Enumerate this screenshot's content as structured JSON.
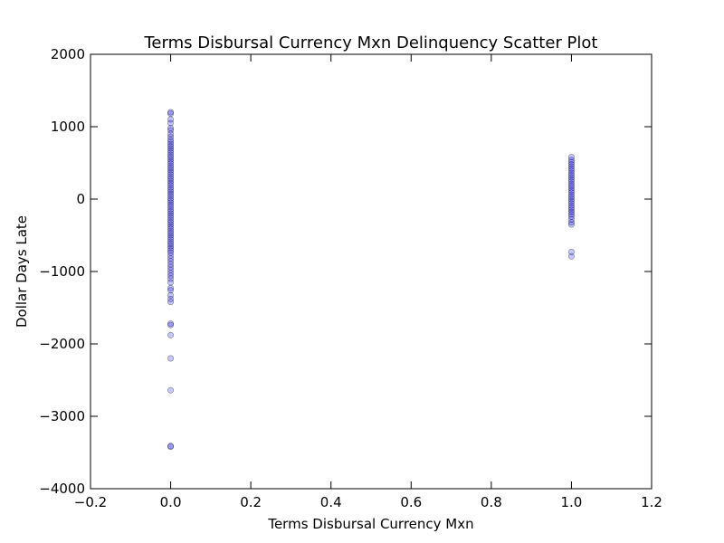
{
  "chart_data": {
    "type": "scatter",
    "title": "Terms Disbursal Currency Mxn Delinquency Scatter Plot",
    "xlabel": "Terms Disbursal Currency Mxn",
    "ylabel": "Dollar Days Late",
    "xlim": [
      -0.2,
      1.2
    ],
    "ylim": [
      -4000,
      2000
    ],
    "xticks": [
      -0.2,
      0.0,
      0.2,
      0.4,
      0.6,
      0.8,
      1.0,
      1.2
    ],
    "xtick_labels": [
      "−0.2",
      "0.0",
      "0.2",
      "0.4",
      "0.6",
      "0.8",
      "1.0",
      "1.2"
    ],
    "yticks": [
      -4000,
      -3000,
      -2000,
      -1000,
      0,
      1000,
      2000
    ],
    "ytick_labels": [
      "−4000",
      "−3000",
      "−2000",
      "−1000",
      "0",
      "1000",
      "2000"
    ],
    "grid": false,
    "legend": false,
    "marker_color": "#0000ff",
    "marker_alpha": 0.22,
    "points": [
      {
        "x": 0,
        "y": 1200
      },
      {
        "x": 0,
        "y": 1180
      },
      {
        "x": 0,
        "y": 1100
      },
      {
        "x": 0,
        "y": 1050
      },
      {
        "x": 0,
        "y": 980
      },
      {
        "x": 0,
        "y": 950
      },
      {
        "x": 0,
        "y": 900
      },
      {
        "x": 0,
        "y": 860
      },
      {
        "x": 0,
        "y": 820
      },
      {
        "x": 0,
        "y": 790
      },
      {
        "x": 0,
        "y": 760
      },
      {
        "x": 0,
        "y": 730
      },
      {
        "x": 0,
        "y": 700
      },
      {
        "x": 0,
        "y": 670
      },
      {
        "x": 0,
        "y": 640
      },
      {
        "x": 0,
        "y": 610
      },
      {
        "x": 0,
        "y": 580
      },
      {
        "x": 0,
        "y": 550
      },
      {
        "x": 0,
        "y": 520
      },
      {
        "x": 0,
        "y": 490
      },
      {
        "x": 0,
        "y": 460
      },
      {
        "x": 0,
        "y": 430
      },
      {
        "x": 0,
        "y": 400
      },
      {
        "x": 0,
        "y": 370
      },
      {
        "x": 0,
        "y": 340
      },
      {
        "x": 0,
        "y": 310
      },
      {
        "x": 0,
        "y": 280
      },
      {
        "x": 0,
        "y": 250
      },
      {
        "x": 0,
        "y": 220
      },
      {
        "x": 0,
        "y": 190
      },
      {
        "x": 0,
        "y": 160
      },
      {
        "x": 0,
        "y": 130
      },
      {
        "x": 0,
        "y": 100
      },
      {
        "x": 0,
        "y": 70
      },
      {
        "x": 0,
        "y": 40
      },
      {
        "x": 0,
        "y": 10
      },
      {
        "x": 0,
        "y": -20
      },
      {
        "x": 0,
        "y": -50
      },
      {
        "x": 0,
        "y": -80
      },
      {
        "x": 0,
        "y": -110
      },
      {
        "x": 0,
        "y": -140
      },
      {
        "x": 0,
        "y": -170
      },
      {
        "x": 0,
        "y": -200
      },
      {
        "x": 0,
        "y": -230
      },
      {
        "x": 0,
        "y": -260
      },
      {
        "x": 0,
        "y": -290
      },
      {
        "x": 0,
        "y": -320
      },
      {
        "x": 0,
        "y": -350
      },
      {
        "x": 0,
        "y": -380
      },
      {
        "x": 0,
        "y": -410
      },
      {
        "x": 0,
        "y": -440
      },
      {
        "x": 0,
        "y": -470
      },
      {
        "x": 0,
        "y": -500
      },
      {
        "x": 0,
        "y": -530
      },
      {
        "x": 0,
        "y": -560
      },
      {
        "x": 0,
        "y": -590
      },
      {
        "x": 0,
        "y": -620
      },
      {
        "x": 0,
        "y": -650
      },
      {
        "x": 0,
        "y": -680
      },
      {
        "x": 0,
        "y": -710
      },
      {
        "x": 0,
        "y": -740
      },
      {
        "x": 0,
        "y": -780
      },
      {
        "x": 0,
        "y": -820
      },
      {
        "x": 0,
        "y": -860
      },
      {
        "x": 0,
        "y": -900
      },
      {
        "x": 0,
        "y": -940
      },
      {
        "x": 0,
        "y": -980
      },
      {
        "x": 0,
        "y": -1020
      },
      {
        "x": 0,
        "y": -1060
      },
      {
        "x": 0,
        "y": -1100
      },
      {
        "x": 0,
        "y": -1150
      },
      {
        "x": 0,
        "y": -1230
      },
      {
        "x": 0,
        "y": -1260
      },
      {
        "x": 0,
        "y": -1330
      },
      {
        "x": 0,
        "y": -1380
      },
      {
        "x": 0,
        "y": -1420
      },
      {
        "x": 0,
        "y": -1720
      },
      {
        "x": 0,
        "y": -1740
      },
      {
        "x": 0,
        "y": -1880
      },
      {
        "x": 0,
        "y": -2200
      },
      {
        "x": 0,
        "y": -2640
      },
      {
        "x": 0,
        "y": -3410
      },
      {
        "x": 0,
        "y": -3420
      },
      {
        "x": 1,
        "y": 580
      },
      {
        "x": 1,
        "y": 540
      },
      {
        "x": 1,
        "y": 510
      },
      {
        "x": 1,
        "y": 480
      },
      {
        "x": 1,
        "y": 450
      },
      {
        "x": 1,
        "y": 420
      },
      {
        "x": 1,
        "y": 390
      },
      {
        "x": 1,
        "y": 360
      },
      {
        "x": 1,
        "y": 330
      },
      {
        "x": 1,
        "y": 300
      },
      {
        "x": 1,
        "y": 270
      },
      {
        "x": 1,
        "y": 240
      },
      {
        "x": 1,
        "y": 210
      },
      {
        "x": 1,
        "y": 180
      },
      {
        "x": 1,
        "y": 150
      },
      {
        "x": 1,
        "y": 120
      },
      {
        "x": 1,
        "y": 90
      },
      {
        "x": 1,
        "y": 60
      },
      {
        "x": 1,
        "y": 30
      },
      {
        "x": 1,
        "y": 0
      },
      {
        "x": 1,
        "y": -30
      },
      {
        "x": 1,
        "y": -60
      },
      {
        "x": 1,
        "y": -90
      },
      {
        "x": 1,
        "y": -120
      },
      {
        "x": 1,
        "y": -150
      },
      {
        "x": 1,
        "y": -180
      },
      {
        "x": 1,
        "y": -210
      },
      {
        "x": 1,
        "y": -240
      },
      {
        "x": 1,
        "y": -280
      },
      {
        "x": 1,
        "y": -320
      },
      {
        "x": 1,
        "y": -350
      },
      {
        "x": 1,
        "y": -730
      },
      {
        "x": 1,
        "y": -790
      }
    ]
  }
}
